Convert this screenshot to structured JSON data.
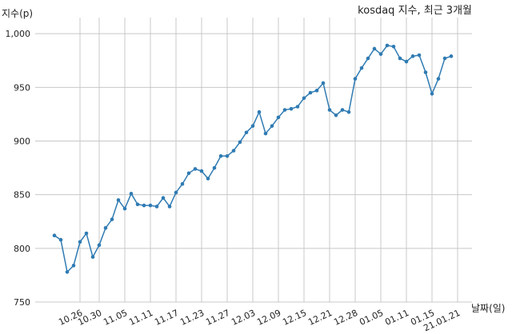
{
  "chart_data": {
    "type": "line",
    "title": "kosdaq 지수, 최근 3개월",
    "xlabel": "날짜(일)",
    "ylabel": "지수(p)",
    "ylim": [
      750,
      1015
    ],
    "yticks": [
      750,
      800,
      850,
      900,
      950,
      1000
    ],
    "ytick_labels": [
      "750",
      "800",
      "850",
      "900",
      "950",
      "1,000"
    ],
    "xticks": [
      "10.26",
      "10.30",
      "11.05",
      "11.11",
      "11.17",
      "11.23",
      "11.27",
      "12.03",
      "12.09",
      "12.15",
      "12.21",
      "12.28",
      "01.05",
      "01.11",
      "01.15",
      "21.01.21"
    ],
    "xtick_index": [
      4,
      7,
      11,
      15,
      19,
      23,
      27,
      31,
      35,
      39,
      43,
      47,
      51,
      55,
      59,
      63
    ],
    "grid": true,
    "series": [
      {
        "color": "#2f7bb3",
        "values": [
          812,
          808,
          778,
          784,
          806,
          814,
          792,
          803,
          819,
          827,
          845,
          837,
          851,
          841,
          840,
          840,
          839,
          847,
          839,
          852,
          860,
          870,
          874,
          872,
          865,
          875,
          886,
          886,
          891,
          899,
          908,
          914,
          927,
          907,
          914,
          922,
          929,
          930,
          932,
          940,
          945,
          947,
          954,
          929,
          924,
          929,
          927,
          958,
          968,
          977,
          986,
          981,
          989,
          988,
          977,
          974,
          979,
          980,
          964,
          944,
          958,
          977,
          979
        ]
      }
    ]
  }
}
